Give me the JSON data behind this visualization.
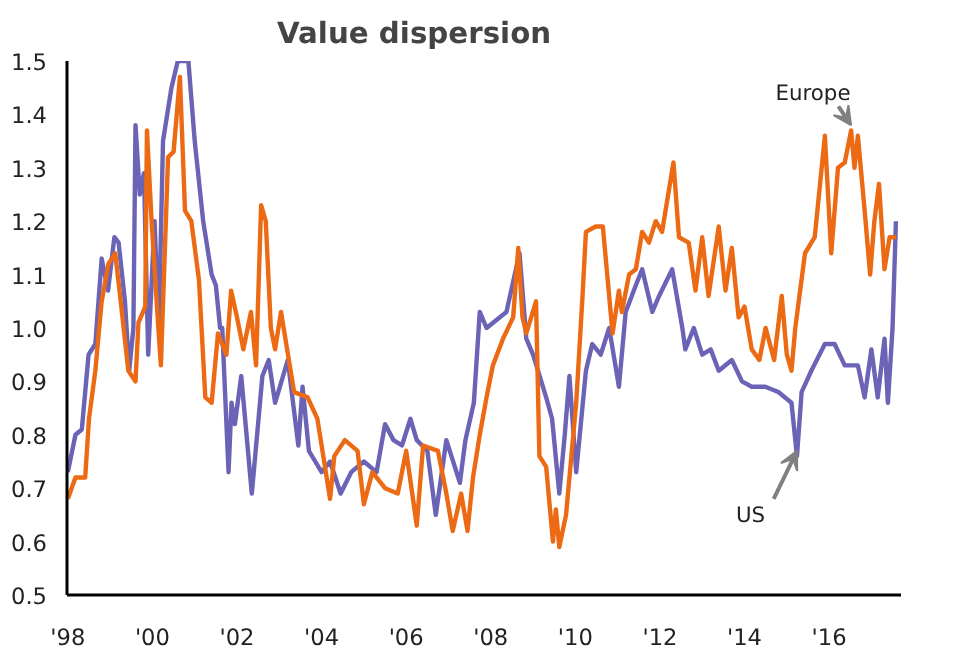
{
  "chart_data": {
    "type": "line",
    "title": "Value dispersion",
    "xlim": [
      1997.98,
      2017.7
    ],
    "ylim": [
      0.5,
      1.5
    ],
    "xticks": [
      {
        "value": 1998,
        "label": "'98"
      },
      {
        "value": 2000,
        "label": "'00"
      },
      {
        "value": 2002,
        "label": "'02"
      },
      {
        "value": 2004,
        "label": "'04"
      },
      {
        "value": 2006,
        "label": "'06"
      },
      {
        "value": 2008,
        "label": "'08"
      },
      {
        "value": 2010,
        "label": "'10"
      },
      {
        "value": 2012,
        "label": "'12"
      },
      {
        "value": 2014,
        "label": "'14"
      },
      {
        "value": 2016,
        "label": "'16"
      }
    ],
    "yticks": [
      0.5,
      0.6,
      0.7,
      0.8,
      0.9,
      {
        "value": 1,
        "label": "1.0"
      },
      1.1,
      1.2,
      1.3,
      1.4,
      1.5
    ],
    "grid": false,
    "legend": false,
    "marker": "none",
    "line_style": "solid",
    "series": [
      {
        "color": "#6b63b5",
        "x": [
          1998.0,
          1998.18,
          1998.33,
          1998.49,
          1998.65,
          1998.8,
          1998.95,
          1999.1,
          1999.2,
          1999.35,
          1999.45,
          1999.55,
          1999.6,
          1999.7,
          1999.8,
          1999.9,
          2000.05,
          2000.15,
          2000.25,
          2000.45,
          2000.6,
          2000.85,
          2001.0,
          2001.2,
          2001.4,
          2001.5,
          2001.6,
          2001.65,
          2001.8,
          2001.87,
          2001.95,
          2002.1,
          2002.35,
          2002.6,
          2002.75,
          2002.9,
          2003.2,
          2003.45,
          2003.55,
          2003.7,
          2003.85,
          2004.0,
          2004.2,
          2004.45,
          2004.7,
          2005.0,
          2005.3,
          2005.5,
          2005.7,
          2005.9,
          2006.1,
          2006.25,
          2006.5,
          2006.7,
          2006.95,
          2007.27,
          2007.4,
          2007.6,
          2007.74,
          2007.9,
          2008.37,
          2008.68,
          2008.84,
          2009.0,
          2009.31,
          2009.45,
          2009.62,
          2009.75,
          2009.86,
          2010.02,
          2010.25,
          2010.4,
          2010.6,
          2010.8,
          2011.03,
          2011.19,
          2011.43,
          2011.58,
          2011.82,
          2011.98,
          2012.29,
          2012.53,
          2012.6,
          2012.8,
          2013.0,
          2013.2,
          2013.39,
          2013.7,
          2013.94,
          2014.17,
          2014.49,
          2014.8,
          2015.11,
          2015.24,
          2015.35,
          2015.58,
          2015.9,
          2016.13,
          2016.37,
          2016.68,
          2016.84,
          2017.0,
          2017.15,
          2017.31,
          2017.39,
          2017.5,
          2017.58
        ],
        "values": [
          0.73,
          0.8,
          0.81,
          0.95,
          0.97,
          1.13,
          1.07,
          1.17,
          1.16,
          1.05,
          0.92,
          1.0,
          1.38,
          1.25,
          1.29,
          0.95,
          1.2,
          1.0,
          1.35,
          1.45,
          1.5,
          1.5,
          1.35,
          1.2,
          1.1,
          1.08,
          1.0,
          1.0,
          0.73,
          0.86,
          0.82,
          0.91,
          0.69,
          0.91,
          0.94,
          0.86,
          0.94,
          0.78,
          0.89,
          0.77,
          0.75,
          0.73,
          0.75,
          0.69,
          0.73,
          0.75,
          0.73,
          0.82,
          0.79,
          0.78,
          0.83,
          0.79,
          0.77,
          0.65,
          0.79,
          0.71,
          0.79,
          0.86,
          1.03,
          1.0,
          1.03,
          1.14,
          0.98,
          0.95,
          0.87,
          0.83,
          0.69,
          0.8,
          0.91,
          0.73,
          0.92,
          0.97,
          0.95,
          1.0,
          0.89,
          1.03,
          1.08,
          1.11,
          1.03,
          1.06,
          1.11,
          1.0,
          0.96,
          1.0,
          0.95,
          0.96,
          0.92,
          0.94,
          0.9,
          0.89,
          0.89,
          0.88,
          0.86,
          0.76,
          0.88,
          0.92,
          0.97,
          0.97,
          0.93,
          0.93,
          0.87,
          0.96,
          0.87,
          0.98,
          0.86,
          1.0,
          1.2
        ]
      },
      {
        "color": "#ec6a14",
        "x": [
          1998.0,
          1998.18,
          1998.41,
          1998.5,
          1998.65,
          1998.8,
          1998.96,
          1999.12,
          1999.25,
          1999.43,
          1999.6,
          1999.67,
          1999.83,
          1999.87,
          1999.98,
          2000.14,
          2000.2,
          2000.37,
          2000.5,
          2000.65,
          2000.77,
          2000.92,
          2001.1,
          2001.25,
          2001.4,
          2001.55,
          2001.75,
          2001.86,
          2002.0,
          2002.15,
          2002.33,
          2002.45,
          2002.57,
          2002.68,
          2002.8,
          2002.9,
          2003.04,
          2003.35,
          2003.67,
          2003.9,
          2004.2,
          2004.3,
          2004.55,
          2004.85,
          2005.0,
          2005.2,
          2005.5,
          2005.8,
          2006.0,
          2006.25,
          2006.4,
          2006.75,
          2006.95,
          2007.1,
          2007.3,
          2007.45,
          2007.58,
          2007.74,
          2007.9,
          2008.05,
          2008.29,
          2008.53,
          2008.65,
          2008.75,
          2008.84,
          2009.07,
          2009.15,
          2009.31,
          2009.47,
          2009.54,
          2009.62,
          2009.78,
          2010.02,
          2010.17,
          2010.25,
          2010.48,
          2010.65,
          2010.88,
          2011.03,
          2011.1,
          2011.27,
          2011.43,
          2011.58,
          2011.74,
          2011.9,
          2012.05,
          2012.32,
          2012.45,
          2012.68,
          2012.84,
          2013.0,
          2013.15,
          2013.39,
          2013.55,
          2013.7,
          2013.86,
          2014.0,
          2014.17,
          2014.35,
          2014.5,
          2014.7,
          2014.88,
          2015.0,
          2015.11,
          2015.2,
          2015.43,
          2015.66,
          2015.9,
          2016.05,
          2016.21,
          2016.37,
          2016.52,
          2016.6,
          2016.68,
          2016.84,
          2016.97,
          2017.07,
          2017.18,
          2017.31,
          2017.43,
          2017.58
        ],
        "values": [
          0.68,
          0.72,
          0.72,
          0.83,
          0.92,
          1.05,
          1.12,
          1.14,
          1.05,
          0.92,
          0.9,
          1.01,
          1.04,
          1.37,
          1.2,
          1.0,
          0.93,
          1.32,
          1.33,
          1.47,
          1.22,
          1.2,
          1.09,
          0.87,
          0.86,
          0.99,
          0.95,
          1.07,
          1.02,
          0.96,
          1.03,
          0.93,
          1.23,
          1.2,
          1.0,
          0.96,
          1.03,
          0.88,
          0.87,
          0.83,
          0.68,
          0.76,
          0.79,
          0.77,
          0.67,
          0.73,
          0.7,
          0.69,
          0.77,
          0.63,
          0.78,
          0.77,
          0.69,
          0.62,
          0.69,
          0.62,
          0.72,
          0.8,
          0.87,
          0.93,
          0.98,
          1.02,
          1.15,
          1.02,
          0.99,
          1.05,
          0.76,
          0.74,
          0.6,
          0.66,
          0.59,
          0.65,
          0.86,
          1.06,
          1.18,
          1.19,
          1.19,
          0.99,
          1.07,
          1.03,
          1.1,
          1.11,
          1.18,
          1.16,
          1.2,
          1.18,
          1.31,
          1.17,
          1.16,
          1.07,
          1.17,
          1.06,
          1.19,
          1.07,
          1.15,
          1.02,
          1.04,
          0.96,
          0.94,
          1.0,
          0.94,
          1.06,
          0.95,
          0.92,
          1.0,
          1.14,
          1.17,
          1.36,
          1.14,
          1.3,
          1.31,
          1.37,
          1.3,
          1.36,
          1.22,
          1.1,
          1.2,
          1.27,
          1.11,
          1.17,
          1.17
        ]
      }
    ],
    "annotations": [
      {
        "text": "Europe",
        "x": 2016.52,
        "y": 1.38
      },
      {
        "text": "US",
        "x": 2015.24,
        "y": 0.77
      }
    ]
  }
}
